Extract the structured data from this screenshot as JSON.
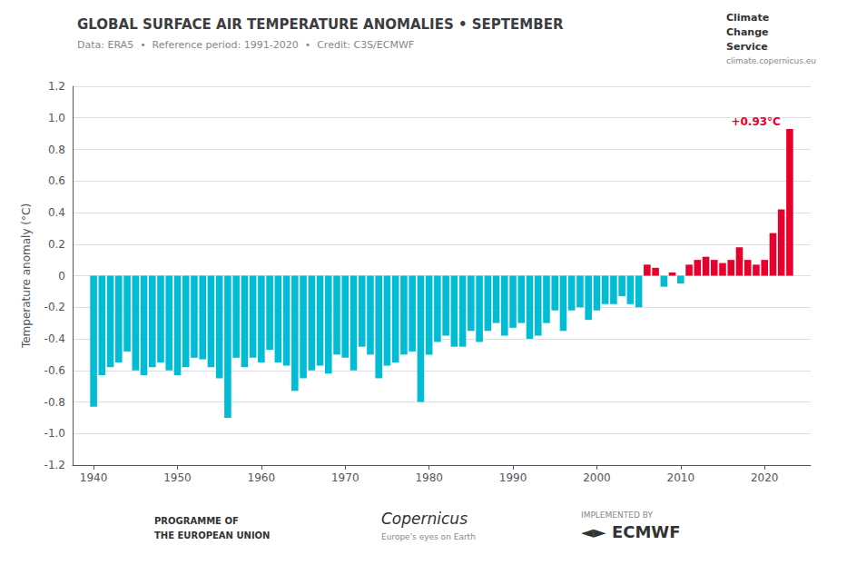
{
  "chart_data": {
    "type": "bar",
    "title": "GLOBAL SURFACE AIR TEMPERATURE ANOMALIES • SEPTEMBER",
    "subtitle": "Data: ERA5  •  Reference period: 1991-2020  •  Credit: C3S/ECMWF",
    "ylabel": "Temperature anomaly (°C)",
    "annotation": "+0.93°C",
    "logo_texts": [
      "Climate",
      "Change",
      "Service",
      "climate.copernicus.eu",
      "PROGRAMME OF",
      "THE EUROPEAN UNION",
      "Copernicus",
      "Europe's eyes on Earth",
      "IMPLEMENTED BY",
      "◄► ECMWF"
    ],
    "x": [
      1940,
      1941,
      1942,
      1943,
      1944,
      1945,
      1946,
      1947,
      1948,
      1949,
      1950,
      1951,
      1952,
      1953,
      1954,
      1955,
      1956,
      1957,
      1958,
      1959,
      1960,
      1961,
      1962,
      1963,
      1964,
      1965,
      1966,
      1967,
      1968,
      1969,
      1970,
      1971,
      1972,
      1973,
      1974,
      1975,
      1976,
      1977,
      1978,
      1979,
      1980,
      1981,
      1982,
      1983,
      1984,
      1985,
      1986,
      1987,
      1988,
      1989,
      1990,
      1991,
      1992,
      1993,
      1994,
      1995,
      1996,
      1997,
      1998,
      1999,
      2000,
      2001,
      2002,
      2003,
      2004,
      2005,
      2006,
      2007,
      2008,
      2009,
      2010,
      2011,
      2012,
      2013,
      2014,
      2015,
      2016,
      2017,
      2018,
      2019,
      2020,
      2021,
      2022,
      2023
    ],
    "values": [
      -0.83,
      -0.63,
      -0.58,
      -0.55,
      -0.48,
      -0.6,
      -0.63,
      -0.58,
      -0.55,
      -0.6,
      -0.63,
      -0.58,
      -0.52,
      -0.53,
      -0.58,
      -0.65,
      -0.9,
      -0.52,
      -0.58,
      -0.52,
      -0.55,
      -0.47,
      -0.55,
      -0.57,
      -0.73,
      -0.65,
      -0.6,
      -0.57,
      -0.62,
      -0.5,
      -0.52,
      -0.6,
      -0.45,
      -0.5,
      -0.65,
      -0.57,
      -0.55,
      -0.5,
      -0.48,
      -0.8,
      -0.5,
      -0.42,
      -0.38,
      -0.45,
      -0.45,
      -0.35,
      -0.42,
      -0.35,
      -0.3,
      -0.38,
      -0.33,
      -0.3,
      -0.4,
      -0.38,
      -0.3,
      -0.22,
      -0.35,
      -0.22,
      -0.2,
      -0.28,
      -0.22,
      -0.18,
      -0.18,
      -0.13,
      -0.18,
      -0.2,
      0.07,
      0.05,
      -0.07,
      0.02,
      -0.05,
      0.07,
      0.1,
      0.12,
      0.1,
      0.08,
      0.1,
      0.18,
      0.1,
      0.07,
      0.1,
      0.27,
      0.42,
      0.93
    ],
    "colors": [
      "#00bcd4",
      "#00bcd4",
      "#00bcd4",
      "#00bcd4",
      "#00bcd4",
      "#00bcd4",
      "#00bcd4",
      "#00bcd4",
      "#00bcd4",
      "#00bcd4",
      "#00bcd4",
      "#00bcd4",
      "#00bcd4",
      "#00bcd4",
      "#00bcd4",
      "#00bcd4",
      "#00bcd4",
      "#00bcd4",
      "#00bcd4",
      "#00bcd4",
      "#00bcd4",
      "#00bcd4",
      "#00bcd4",
      "#00bcd4",
      "#00bcd4",
      "#00bcd4",
      "#00bcd4",
      "#00bcd4",
      "#00bcd4",
      "#00bcd4",
      "#00bcd4",
      "#00bcd4",
      "#00bcd4",
      "#00bcd4",
      "#00bcd4",
      "#00bcd4",
      "#00bcd4",
      "#00bcd4",
      "#00bcd4",
      "#00bcd4",
      "#00bcd4",
      "#00bcd4",
      "#00bcd4",
      "#00bcd4",
      "#00bcd4",
      "#00bcd4",
      "#00bcd4",
      "#00bcd4",
      "#00bcd4",
      "#00bcd4",
      "#00bcd4",
      "#00bcd4",
      "#00bcd4",
      "#00bcd4",
      "#00bcd4",
      "#00bcd4",
      "#00bcd4",
      "#00bcd4",
      "#00bcd4",
      "#00bcd4",
      "#00bcd4",
      "#00bcd4",
      "#00bcd4",
      "#00bcd4",
      "#00bcd4",
      "#00bcd4",
      "#e8002d",
      "#e8002d",
      "#00bcd4",
      "#e8002d",
      "#00bcd4",
      "#e8002d",
      "#e8002d",
      "#e8002d",
      "#e8002d",
      "#e8002d",
      "#e8002d",
      "#e8002d",
      "#e8002d",
      "#e8002d",
      "#e8002d",
      "#e8002d",
      "#e8002d",
      "#e8002d"
    ],
    "xlim": [
      1937.5,
      2025.5
    ],
    "xticks": [
      1940,
      1950,
      1960,
      1970,
      1980,
      1990,
      2000,
      2010,
      2020
    ],
    "ylim": [
      -1.2,
      1.2
    ],
    "yticks": [
      -1.2,
      {
        "value": -1.0,
        "label": "-1.0"
      },
      -0.8,
      -0.6,
      -0.4,
      -0.2,
      0,
      0.2,
      0.4,
      0.6,
      0.8,
      {
        "value": 1.0,
        "label": "1.0"
      },
      1.2
    ],
    "grid": true
  }
}
